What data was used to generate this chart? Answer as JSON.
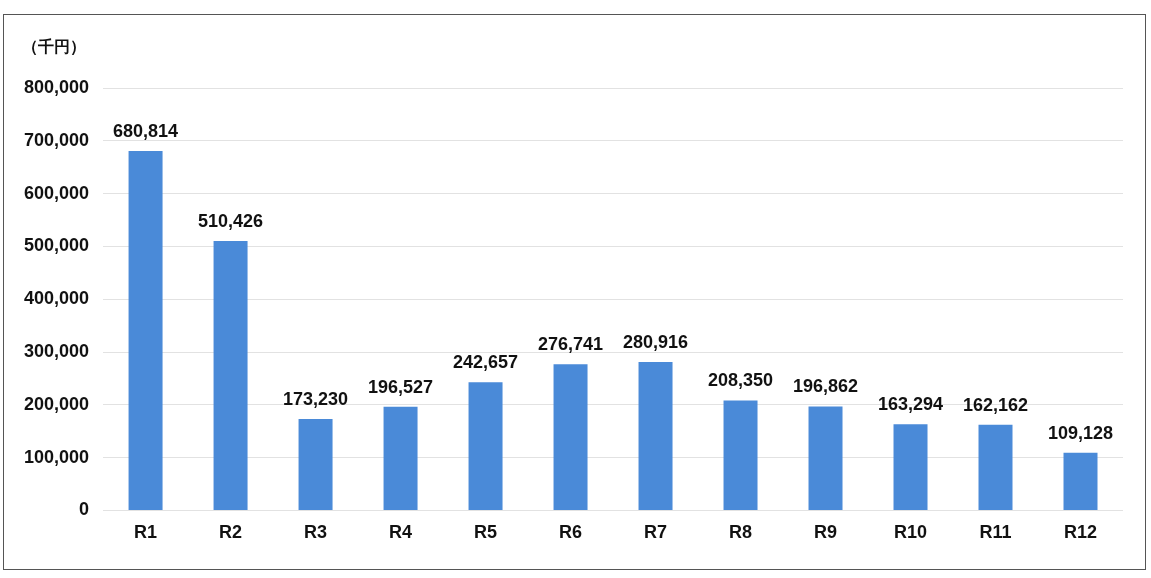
{
  "chart_data": {
    "type": "bar",
    "ylabel": "（千円）",
    "categories": [
      "R1",
      "R2",
      "R3",
      "R4",
      "R5",
      "R6",
      "R7",
      "R8",
      "R9",
      "R10",
      "R11",
      "R12"
    ],
    "values": [
      680814,
      510426,
      173230,
      196527,
      242657,
      276741,
      280916,
      208350,
      196862,
      163294,
      162162,
      109128
    ],
    "color": "#4a8ad8",
    "ylim": [
      0,
      800000
    ],
    "yticks": [
      {
        "value": 0,
        "label": "0"
      },
      {
        "value": 100000,
        "label": "100,000"
      },
      {
        "value": 200000,
        "label": "200,000"
      },
      {
        "value": 300000,
        "label": "300,000"
      },
      {
        "value": 400000,
        "label": "400,000"
      },
      {
        "value": 500000,
        "label": "500,000"
      },
      {
        "value": 600000,
        "label": "600,000"
      },
      {
        "value": 700000,
        "label": "700,000"
      },
      {
        "value": 800000,
        "label": "800,000"
      }
    ],
    "value_labels": [
      "680,814",
      "510,426",
      "173,230",
      "196,527",
      "242,657",
      "276,741",
      "280,916",
      "208,350",
      "196,862",
      "163,294",
      "162,162",
      "109,128"
    ],
    "grid": "y",
    "legend": false
  }
}
